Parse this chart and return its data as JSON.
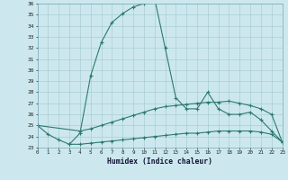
{
  "xlabel": "Humidex (Indice chaleur)",
  "x_values": [
    0,
    1,
    2,
    3,
    4,
    5,
    6,
    7,
    8,
    9,
    10,
    11,
    12,
    13,
    14,
    15,
    16,
    17,
    18,
    19,
    20,
    21,
    22,
    23
  ],
  "line1": [
    25.0,
    24.2,
    23.7,
    23.3,
    24.3,
    29.5,
    32.5,
    34.3,
    35.1,
    35.7,
    36.0,
    36.5,
    32.0,
    27.5,
    26.5,
    26.5,
    28.0,
    26.5,
    26.0,
    26.0,
    26.2,
    25.5,
    24.5,
    23.5
  ],
  "line2": [
    25.0,
    null,
    null,
    null,
    24.5,
    24.7,
    25.0,
    25.3,
    25.6,
    25.9,
    26.2,
    26.5,
    26.7,
    26.8,
    26.9,
    27.0,
    27.1,
    27.1,
    27.2,
    27.0,
    26.8,
    26.5,
    26.0,
    23.5
  ],
  "line3": [
    null,
    null,
    null,
    23.3,
    23.3,
    23.4,
    23.5,
    23.6,
    23.7,
    23.8,
    23.9,
    24.0,
    24.1,
    24.2,
    24.3,
    24.3,
    24.4,
    24.5,
    24.5,
    24.5,
    24.5,
    24.4,
    24.2,
    23.5
  ],
  "line_color": "#2d7a6e",
  "bg_color": "#cce8ee",
  "grid_color": "#aacdd6",
  "ylim": [
    23,
    36
  ],
  "yticks": [
    23,
    24,
    25,
    26,
    27,
    28,
    29,
    30,
    31,
    32,
    33,
    34,
    35,
    36
  ],
  "xlim": [
    0,
    23
  ]
}
